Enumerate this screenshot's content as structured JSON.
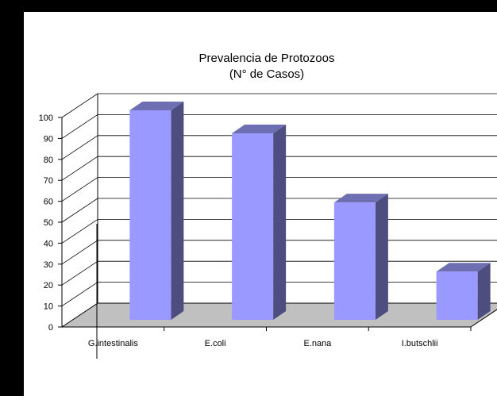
{
  "chart_data": {
    "type": "bar",
    "title": "Prevalencia de Protozoos",
    "subtitle": "(N° de Casos)",
    "categories": [
      "G.intestinalis",
      "E.coli",
      "E.nana",
      "I.butschlii"
    ],
    "values": [
      100,
      89,
      56,
      23
    ],
    "ylim": [
      0,
      100
    ],
    "yticks": [
      0,
      10,
      20,
      30,
      40,
      50,
      60,
      70,
      80,
      90,
      100
    ],
    "xlabel": "",
    "ylabel": "",
    "grid": true,
    "style": "3d-column",
    "colors": {
      "bar_front": "#9999ff",
      "bar_side": "#4d4d80",
      "bar_top": "#6e6eb3",
      "floor": "#c0c0c0",
      "frame": "#000000",
      "gridline": "#000000"
    }
  }
}
